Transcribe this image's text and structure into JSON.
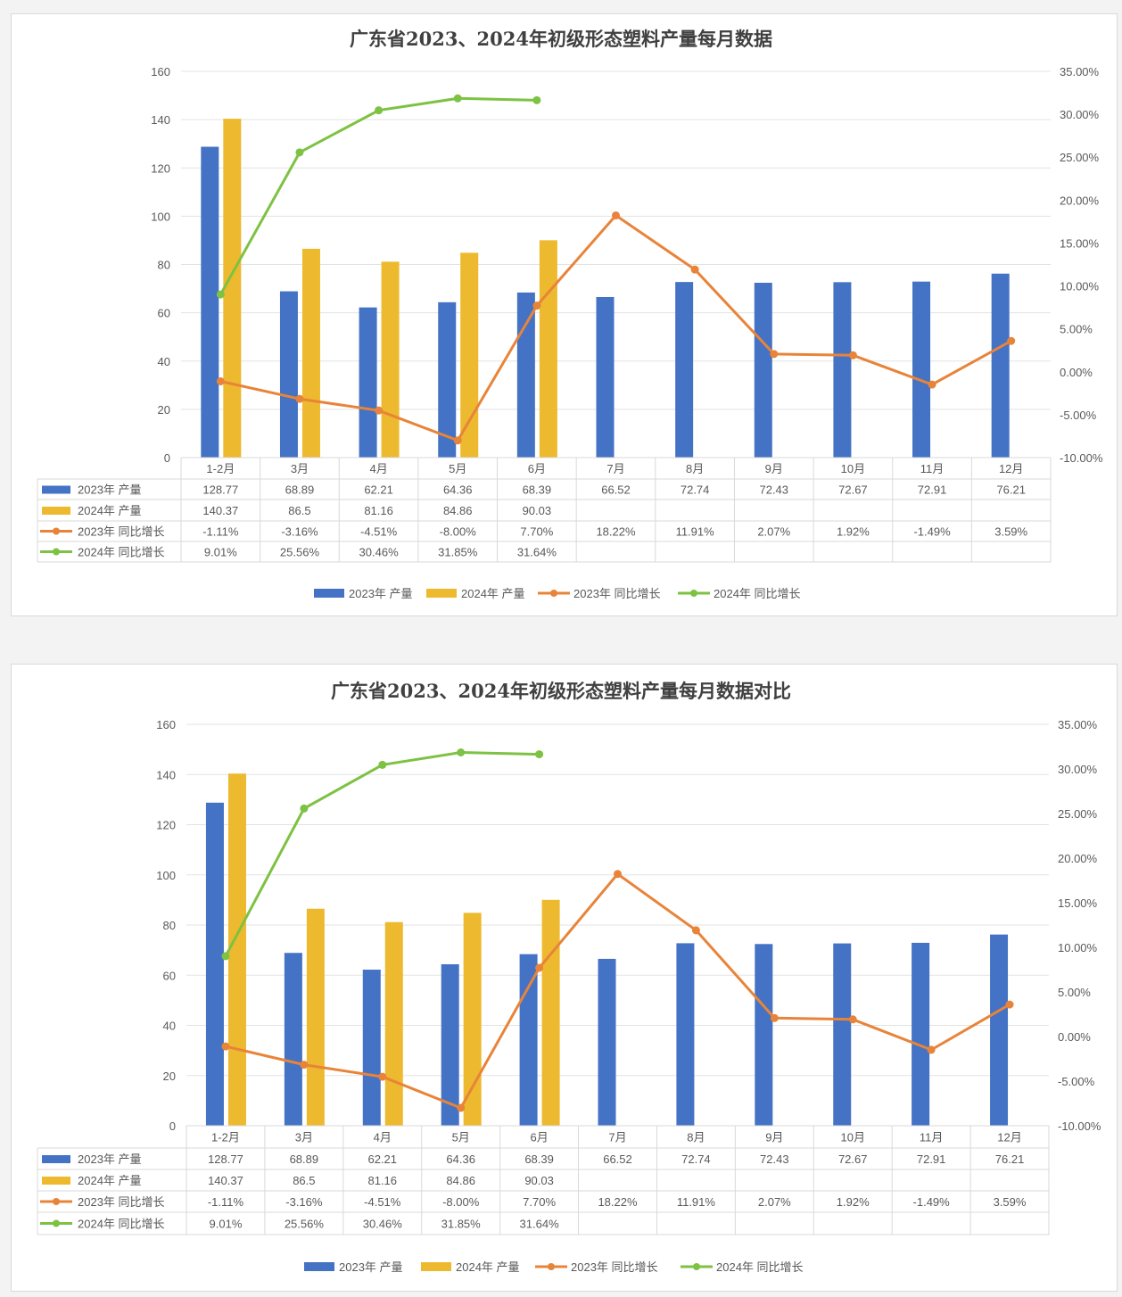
{
  "chart_data": [
    {
      "type": "bar+line",
      "title": "广东省2023、2024年初级形态塑料产量每月数据",
      "categories": [
        "1-2月",
        "3月",
        "4月",
        "5月",
        "6月",
        "7月",
        "8月",
        "9月",
        "10月",
        "11月",
        "12月"
      ],
      "series": [
        {
          "name": "2023年 产量",
          "kind": "bar",
          "axis": "left",
          "color": "#4472C4",
          "values": [
            128.77,
            68.89,
            62.21,
            64.36,
            68.39,
            66.52,
            72.74,
            72.43,
            72.67,
            72.91,
            76.21
          ],
          "labels": [
            "128.77",
            "68.89",
            "62.21",
            "64.36",
            "68.39",
            "66.52",
            "72.74",
            "72.43",
            "72.67",
            "72.91",
            "76.21"
          ]
        },
        {
          "name": "2024年 产量",
          "kind": "bar",
          "axis": "left",
          "color": "#EDB92E",
          "values": [
            140.37,
            86.5,
            81.16,
            84.86,
            90.03,
            null,
            null,
            null,
            null,
            null,
            null
          ],
          "labels": [
            "140.37",
            "86.5",
            "81.16",
            "84.86",
            "90.03",
            "",
            "",
            "",
            "",
            "",
            ""
          ]
        },
        {
          "name": "2023年 同比增长",
          "kind": "line",
          "axis": "right",
          "color": "#E8843A",
          "values": [
            -1.11,
            -3.16,
            -4.51,
            -8.0,
            7.7,
            18.22,
            11.91,
            2.07,
            1.92,
            -1.49,
            3.59
          ],
          "labels": [
            "-1.11%",
            "-3.16%",
            "-4.51%",
            "-8.00%",
            "7.70%",
            "18.22%",
            "11.91%",
            "2.07%",
            "1.92%",
            "-1.49%",
            "3.59%"
          ]
        },
        {
          "name": "2024年 同比增长",
          "kind": "line",
          "axis": "right",
          "color": "#7DC242",
          "values": [
            9.01,
            25.56,
            30.46,
            31.85,
            31.64,
            null,
            null,
            null,
            null,
            null,
            null
          ],
          "labels": [
            "9.01%",
            "25.56%",
            "30.46%",
            "31.85%",
            "31.64%",
            "",
            "",
            "",
            "",
            "",
            ""
          ]
        }
      ],
      "ylim": [
        0,
        160
      ],
      "yticks": [
        "0",
        "20",
        "40",
        "60",
        "80",
        "100",
        "120",
        "140",
        "160"
      ],
      "y2lim": [
        -10,
        35
      ],
      "y2ticks": [
        "-10.00%",
        "-5.00%",
        "0.00%",
        "5.00%",
        "10.00%",
        "15.00%",
        "20.00%",
        "25.00%",
        "30.00%",
        "35.00%"
      ],
      "grid": true,
      "data_table": true,
      "legend": "bottom"
    },
    {
      "type": "bar+line",
      "title": "广东省2023、2024年初级形态塑料产量每月数据对比",
      "categories": [
        "1-2月",
        "3月",
        "4月",
        "5月",
        "6月",
        "7月",
        "8月",
        "9月",
        "10月",
        "11月",
        "12月"
      ],
      "series": [
        {
          "name": "2023年 产量",
          "kind": "bar",
          "axis": "left",
          "color": "#4472C4",
          "values": [
            128.77,
            68.89,
            62.21,
            64.36,
            68.39,
            66.52,
            72.74,
            72.43,
            72.67,
            72.91,
            76.21
          ],
          "labels": [
            "128.77",
            "68.89",
            "62.21",
            "64.36",
            "68.39",
            "66.52",
            "72.74",
            "72.43",
            "72.67",
            "72.91",
            "76.21"
          ]
        },
        {
          "name": "2024年 产量",
          "kind": "bar",
          "axis": "left",
          "color": "#EDB92E",
          "values": [
            140.37,
            86.5,
            81.16,
            84.86,
            90.03,
            null,
            null,
            null,
            null,
            null,
            null
          ],
          "labels": [
            "140.37",
            "86.5",
            "81.16",
            "84.86",
            "90.03",
            "",
            "",
            "",
            "",
            "",
            ""
          ]
        },
        {
          "name": "2023年 同比增长",
          "kind": "line",
          "axis": "right",
          "color": "#E8843A",
          "values": [
            -1.11,
            -3.16,
            -4.51,
            -8.0,
            7.7,
            18.22,
            11.91,
            2.07,
            1.92,
            -1.49,
            3.59
          ],
          "labels": [
            "-1.11%",
            "-3.16%",
            "-4.51%",
            "-8.00%",
            "7.70%",
            "18.22%",
            "11.91%",
            "2.07%",
            "1.92%",
            "-1.49%",
            "3.59%"
          ]
        },
        {
          "name": "2024年 同比增长",
          "kind": "line",
          "axis": "right",
          "color": "#7DC242",
          "values": [
            9.01,
            25.56,
            30.46,
            31.85,
            31.64,
            null,
            null,
            null,
            null,
            null,
            null
          ],
          "labels": [
            "9.01%",
            "25.56%",
            "30.46%",
            "31.85%",
            "31.64%",
            "",
            "",
            "",
            "",
            "",
            ""
          ]
        }
      ],
      "ylim": [
        0,
        160
      ],
      "yticks": [
        "0",
        "20",
        "40",
        "60",
        "80",
        "100",
        "120",
        "140",
        "160"
      ],
      "y2lim": [
        -10,
        35
      ],
      "y2ticks": [
        "-10.00%",
        "-5.00%",
        "0.00%",
        "5.00%",
        "10.00%",
        "15.00%",
        "20.00%",
        "25.00%",
        "30.00%",
        "35.00%"
      ],
      "grid": true,
      "data_table": true,
      "legend": "bottom"
    }
  ]
}
